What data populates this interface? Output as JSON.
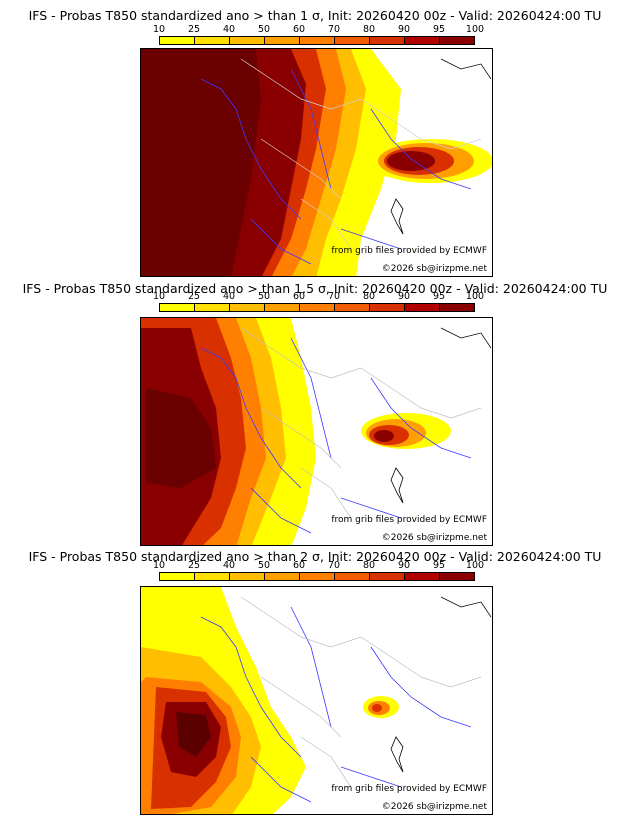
{
  "legend": {
    "labels": [
      "10",
      "25",
      "40",
      "50",
      "60",
      "70",
      "80",
      "90",
      "95",
      "100"
    ],
    "colors": [
      "#ffff00",
      "#ffe000",
      "#ffbf00",
      "#ff9f00",
      "#ff7f00",
      "#f25c00",
      "#d93000",
      "#b00000",
      "#8a0000",
      "#5a0000"
    ]
  },
  "panels": [
    {
      "title": "IFS - Probas T850  standardized ano > than 1 σ, Init: 20260420 00z - Valid: 20260424:00 TU",
      "source": "from grib files provided by ECMWF",
      "copyright": "©2026 sb@irizpme.net"
    },
    {
      "title": "IFS - Probas T850  standardized ano > than 1.5 σ, Init: 20260420 00z - Valid: 20260424:00 TU",
      "source": "from grib files provided by ECMWF",
      "copyright": "©2026 sb@irizpme.net"
    },
    {
      "title": "IFS - Probas T850  standardized ano > than 2 σ, Init: 20260420 00z - Valid: 20260424:00 TU",
      "source": "from grib files provided by ECMWF",
      "copyright": "©2026 sb@irizpme.net"
    }
  ]
}
